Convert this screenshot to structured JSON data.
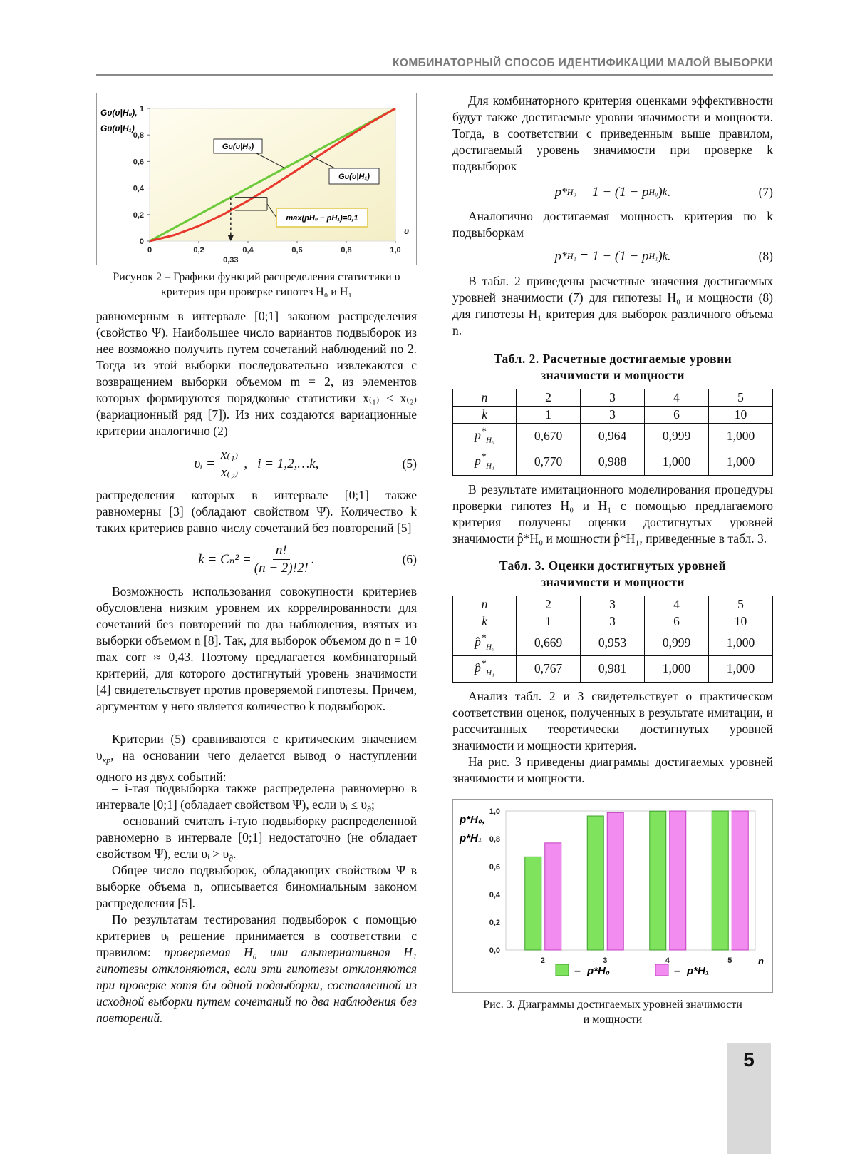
{
  "header": "КОМБИНАТОРНЫЙ СПОСОБ ИДЕНТИФИКАЦИИ МАЛОЙ ВЫБОРКИ",
  "page_number": "5",
  "chart_data": [
    {
      "type": "line",
      "ylabel": [
        "Gυ(υ|H₀),",
        "Gυ(υ|H₁)"
      ],
      "xlabel": "υ",
      "x": [
        0,
        0.1,
        0.2,
        0.3,
        0.4,
        0.5,
        0.6,
        0.7,
        0.8,
        0.9,
        1.0
      ],
      "series": [
        {
          "name": "Gυ(υ|H₀)",
          "color": "#6cc93a",
          "values": [
            0,
            0.1,
            0.2,
            0.3,
            0.4,
            0.5,
            0.6,
            0.7,
            0.8,
            0.9,
            1.0
          ]
        },
        {
          "name": "Gυ(υ|H₁)",
          "color": "#e8372c",
          "values": [
            0,
            0.045,
            0.114,
            0.201,
            0.303,
            0.416,
            0.535,
            0.657,
            0.778,
            0.894,
            1.0
          ]
        }
      ],
      "xlim": [
        0,
        1.0
      ],
      "ylim": [
        0,
        1.0
      ],
      "xticks": [
        0,
        {
          "value": 0.2,
          "label": "0,2"
        },
        {
          "value": 0.4,
          "label": "0,4"
        },
        {
          "value": 0.6,
          "label": "0,6"
        },
        {
          "value": 0.8,
          "label": "0,8"
        },
        {
          "value": 1.0,
          "label": "1,0"
        }
      ],
      "yticks": [
        0,
        {
          "value": 0.2,
          "label": "0,2"
        },
        {
          "value": 0.4,
          "label": "0,4"
        },
        {
          "value": 0.6,
          "label": "0,6"
        },
        {
          "value": 0.8,
          "label": "0,8"
        },
        1
      ],
      "marker_x": {
        "value": 0.33,
        "label": "0,33"
      },
      "annotation": "max(pH₀ − pH₁)=0,1",
      "grid": false
    },
    {
      "type": "bar",
      "ylabel": [
        "p*H₀,",
        "p*H₁"
      ],
      "xlabel": "n",
      "categories": [
        "2",
        "3",
        "4",
        "5"
      ],
      "series": [
        {
          "name": "p*H₀",
          "color": "#7fe35d",
          "values": [
            0.67,
            0.964,
            0.999,
            1.0
          ]
        },
        {
          "name": "p*H₁",
          "color": "#f38cf0",
          "values": [
            0.77,
            0.988,
            1.0,
            1.0
          ]
        }
      ],
      "legend_dash": "–",
      "ylim": [
        0,
        1.0
      ],
      "yticks": [
        {
          "value": 0,
          "label": "0,0"
        },
        {
          "value": 0.2,
          "label": "0,2"
        },
        {
          "value": 0.4,
          "label": "0,4"
        },
        {
          "value": 0.6,
          "label": "0,6"
        },
        {
          "value": 0.8,
          "label": "0,8"
        },
        {
          "value": 1.0,
          "label": "1,0"
        }
      ],
      "legend": "bottom",
      "grid": false
    }
  ],
  "figure2_caption": [
    "Рисунок 2 – Графики функций распределения статистики υ",
    "критерия при проверке гипотез H₀ и H₁"
  ],
  "left": {
    "p1": "равномерным в интервале [0;1] законом распределения (свойство Ψ). Наибольшее число вариантов подвыборок из нее возможно получить путем сочетаний наблюдений по 2. Тогда из этой выборки последовательно извлекаются с возвращением выборки объемом m = 2, из элементов которых формируются порядковые статистики x₍₁₎ ≤ x₍₂₎ (вариационный ряд [7]). Из них создаются вариационные критерии аналогично (2)",
    "formula5": [
      "υᵢ =",
      "x₍₁₎",
      "x₍₂₎",
      ",   i = 1,2,…k,",
      "(5)"
    ],
    "p2": "распределения которых в интервале [0;1] также равномерны [3] (обладают свойством Ψ). Количество k таких критериев равно числу сочетаний без повторений [5]",
    "formula6": [
      "k = Cₙ² =",
      "n!",
      "(n − 2)!2!",
      ".",
      "(6)"
    ],
    "p3": "Возможность использования совокупности критериев обусловлена низким уровнем их коррелированности для сочетаний без повторений по два наблюдения, взятых из выборки объемом n [8]. Так, для выборок объемом до n = 10 max corr ≈ 0,43. Поэтому предлагается комбинаторный критерий, для которого достигнутый уровень значимости [4] свидетельствует против проверяемой гипотезы. Причем, аргументом у него является количество k подвыборок.",
    "p4": [
      "Критерии (5) сравниваются с критическим значением υ",
      "кр",
      ", на основании чего делается вывод о наступлении одного из двух событий:"
    ],
    "p5": [
      "– i-тая подвыборка также распределена равномерно в интервале [0;1] (обладает свойством Ψ), если υᵢ ≤ υ",
      "∂",
      ";"
    ],
    "p6": [
      "– оснований считать i-тую подвыборку распределенной равномерно в интервале [0;1] недостаточно (не обладает свойством Ψ), если υᵢ > υ",
      "∂",
      "."
    ],
    "p7": "Общее число подвыборок, обладающих свойством Ψ в выборке объема n, описывается биномиальным законом распределения [5].",
    "p8": [
      "По результатам тестирования подвыборок с помощью критериев υᵢ решение принимается в соответствии с правилом: ",
      "проверяемая H₀ или альтернативная H₁ гипотезы отклоняются, если эти гипотезы отклоняются при проверке хотя бы одной подвыборки, составленной из исходной выборки путем сочетаний по два наблюдения без повторений."
    ]
  },
  "right": {
    "p1": "Для комбинаторного критерия оценками эффективности будут также достигаемые уровни значимости и мощности. Тогда, в соответствии с приведенным выше правилом, достигаемый уровень значимости при проверке k подвыборок",
    "formula7": [
      "p",
      "*",
      "H₀",
      " = 1 − (1 − p",
      "H₀",
      ")",
      "k",
      ".",
      "(7)"
    ],
    "p2": "Аналогично достигаемая мощность критерия по k подвыборкам",
    "formula8": [
      "p",
      "*",
      "H₁",
      " = 1 − (1 − p",
      "H₁",
      ")",
      "k",
      ".",
      "(8)"
    ],
    "p3": "В табл. 2 приведены расчетные значения достигаемых уровней значимости (7) для гипотезы H₀ и мощности (8) для гипотезы H₁ критерия для выборок различного объема n.",
    "p4": "В результате имитационного моделирования процедуры проверки гипотез H₀ и H₁ с помощью предлагаемого критерия получены оценки достигнутых уровней значимости p̂*H₀ и мощности p̂*H₁, приведенные в табл. 3.",
    "p5": "Анализ табл. 2 и 3 свидетельствует о практическом соответствии оценок, полученных в результате имитации, и рассчитанных теоретически достигнутых уровней значимости и мощности критерия.",
    "p6": "На рис. 3 приведены диаграммы достигаемых уровней значимости и мощности."
  },
  "table2": {
    "title": [
      "Табл. 2. Расчетные достигаемые уровни",
      "значимости и мощности"
    ],
    "rows": [
      [
        "n",
        "2",
        "3",
        "4",
        "5"
      ],
      [
        "k",
        "1",
        "3",
        "6",
        "10"
      ],
      [
        [
          "p",
          "*",
          "H₀"
        ],
        "0,670",
        "0,964",
        "0,999",
        "1,000"
      ],
      [
        [
          "p",
          "*",
          "H₁"
        ],
        "0,770",
        "0,988",
        "1,000",
        "1,000"
      ]
    ]
  },
  "table3": {
    "title": [
      "Табл. 3. Оценки достигнутых уровней",
      "значимости и мощности"
    ],
    "rows": [
      [
        "n",
        "2",
        "3",
        "4",
        "5"
      ],
      [
        "k",
        "1",
        "3",
        "6",
        "10"
      ],
      [
        [
          "p̂",
          "*",
          "H₀"
        ],
        "0,669",
        "0,953",
        "0,999",
        "1,000"
      ],
      [
        [
          "p̂",
          "*",
          "H₁"
        ],
        "0,767",
        "0,981",
        "1,000",
        "1,000"
      ]
    ]
  },
  "figure3_caption": [
    "Рис. 3. Диаграммы достигаемых уровней значимости",
    "и мощности"
  ]
}
